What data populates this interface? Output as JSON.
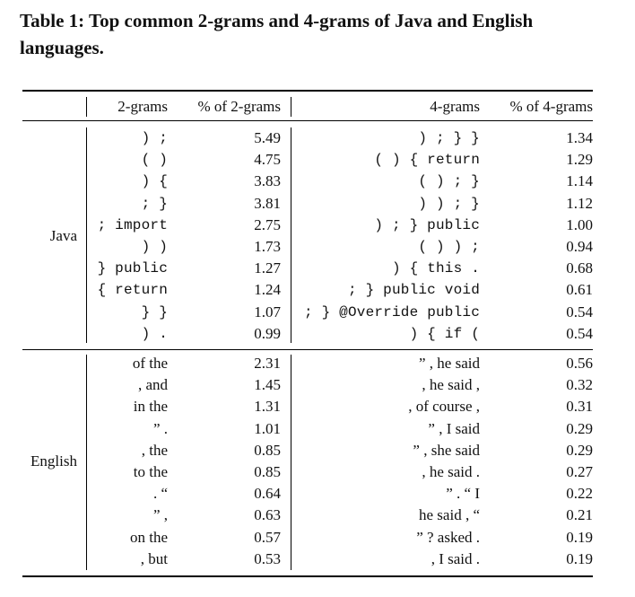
{
  "caption": "Table 1: Top common 2-grams and 4-grams of Java and English languages.",
  "headers": {
    "grams2": "2-grams",
    "pct2": "% of 2-grams",
    "grams4": "4-grams",
    "pct4": "% of 4-grams"
  },
  "groups": [
    {
      "label": "Java",
      "code": true,
      "rows": [
        {
          "g2": ") ;",
          "p2": "5.49",
          "g4": ") ; } }",
          "p4": "1.34"
        },
        {
          "g2": "( )",
          "p2": "4.75",
          "g4": "( ) { return",
          "p4": "1.29"
        },
        {
          "g2": ") {",
          "p2": "3.83",
          "g4": "( ) ; }",
          "p4": "1.14"
        },
        {
          "g2": "; }",
          "p2": "3.81",
          "g4": ") ) ; }",
          "p4": "1.12"
        },
        {
          "g2": "; import",
          "p2": "2.75",
          "g4": ") ; } public",
          "p4": "1.00"
        },
        {
          "g2": ") )",
          "p2": "1.73",
          "g4": "( ) ) ;",
          "p4": "0.94"
        },
        {
          "g2": "} public",
          "p2": "1.27",
          "g4": ") { this .",
          "p4": "0.68"
        },
        {
          "g2": "{ return",
          "p2": "1.24",
          "g4": "; } public void",
          "p4": "0.61"
        },
        {
          "g2": "} }",
          "p2": "1.07",
          "g4": "; } @Override public",
          "p4": "0.54"
        },
        {
          "g2": ") .",
          "p2": "0.99",
          "g4": ") { if (",
          "p4": "0.54"
        }
      ]
    },
    {
      "label": "English",
      "code": false,
      "rows": [
        {
          "g2": "of the",
          "p2": "2.31",
          "g4": "” , he said",
          "p4": "0.56"
        },
        {
          "g2": ", and",
          "p2": "1.45",
          "g4": ", he said ,",
          "p4": "0.32"
        },
        {
          "g2": "in the",
          "p2": "1.31",
          "g4": ", of course ,",
          "p4": "0.31"
        },
        {
          "g2": "” .",
          "p2": "1.01",
          "g4": "” , I said",
          "p4": "0.29"
        },
        {
          "g2": ", the",
          "p2": "0.85",
          "g4": "” , she said",
          "p4": "0.29"
        },
        {
          "g2": "to the",
          "p2": "0.85",
          "g4": ", he said .",
          "p4": "0.27"
        },
        {
          "g2": ". “",
          "p2": "0.64",
          "g4": "” . “ I",
          "p4": "0.22"
        },
        {
          "g2": "” ,",
          "p2": "0.63",
          "g4": "he said , “",
          "p4": "0.21"
        },
        {
          "g2": "on the",
          "p2": "0.57",
          "g4": "” ? asked .",
          "p4": "0.19"
        },
        {
          "g2": ", but",
          "p2": "0.53",
          "g4": ", I said .",
          "p4": "0.19"
        }
      ]
    }
  ]
}
